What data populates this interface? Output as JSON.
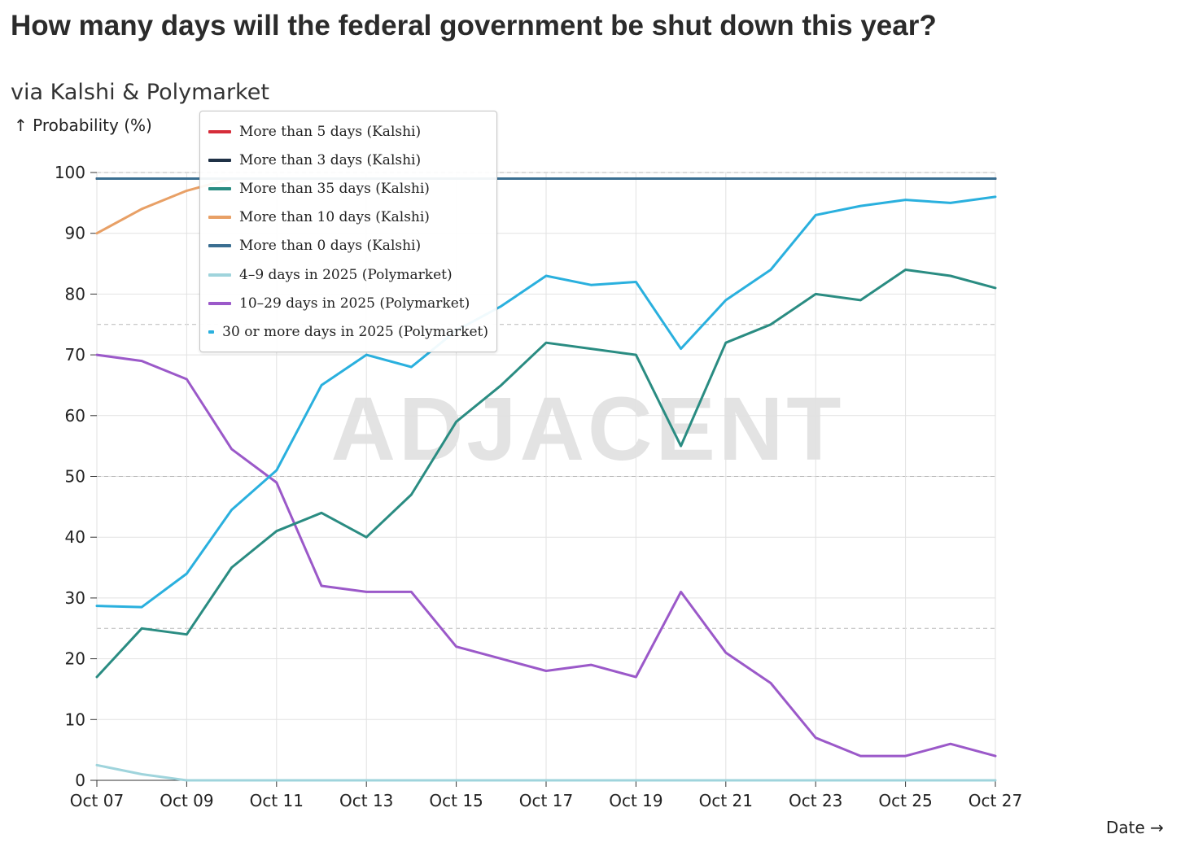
{
  "title": "How many days will the federal government be shut down this year?",
  "subtitle": "via Kalshi & Polymarket",
  "watermark": "ADJACENT",
  "chart_data": {
    "type": "line",
    "ylabel": "↑ Probability (%)",
    "xlabel": "Date →",
    "ylim": [
      0,
      100
    ],
    "yticks": [
      0,
      10,
      20,
      30,
      40,
      50,
      60,
      70,
      80,
      90,
      100
    ],
    "dashed_reference_lines": [
      25,
      50,
      75,
      100
    ],
    "grid": true,
    "legend_position": "top-left",
    "x": [
      "Oct 07",
      "Oct 08",
      "Oct 09",
      "Oct 10",
      "Oct 11",
      "Oct 12",
      "Oct 13",
      "Oct 14",
      "Oct 15",
      "Oct 16",
      "Oct 17",
      "Oct 18",
      "Oct 19",
      "Oct 20",
      "Oct 21",
      "Oct 22",
      "Oct 23",
      "Oct 24",
      "Oct 25",
      "Oct 26",
      "Oct 27"
    ],
    "xtick_labels": [
      "Oct 07",
      "Oct 09",
      "Oct 11",
      "Oct 13",
      "Oct 15",
      "Oct 17",
      "Oct 19",
      "Oct 21",
      "Oct 23",
      "Oct 25",
      "Oct 27"
    ],
    "series": [
      {
        "name": "More than 5 days (Kalshi)",
        "color": "#d62d3a",
        "values": [
          99,
          99,
          99,
          99,
          99,
          99,
          99,
          99,
          99,
          99,
          99,
          99,
          99,
          99,
          99,
          99,
          99,
          99,
          99,
          99,
          99
        ]
      },
      {
        "name": "More than 3 days (Kalshi)",
        "color": "#1f3146",
        "values": [
          99,
          99,
          99,
          99,
          99,
          99,
          99,
          99,
          99,
          99,
          99,
          99,
          99,
          99,
          99,
          99,
          99,
          99,
          99,
          99,
          99
        ]
      },
      {
        "name": "More than 35 days (Kalshi)",
        "color": "#2a8c82",
        "values": [
          17,
          25,
          24,
          35,
          41,
          44,
          40,
          47,
          59,
          65,
          72,
          71,
          70,
          55,
          72,
          75,
          80,
          79,
          84,
          83,
          81
        ]
      },
      {
        "name": "More than 10 days (Kalshi)",
        "color": "#e8a066",
        "values": [
          90,
          94,
          97,
          99,
          99,
          99,
          99,
          99,
          99,
          99,
          99,
          99,
          99,
          99,
          99,
          99,
          99,
          99,
          99,
          99,
          99
        ]
      },
      {
        "name": "More than 0 days (Kalshi)",
        "color": "#3a6e91",
        "values": [
          99,
          99,
          99,
          99,
          99,
          99,
          99,
          99,
          99,
          99,
          99,
          99,
          99,
          99,
          99,
          99,
          99,
          99,
          99,
          99,
          99
        ]
      },
      {
        "name": "4–9 days in 2025 (Polymarket)",
        "color": "#9fd4dc",
        "values": [
          2.5,
          1,
          0,
          0,
          0,
          0,
          0,
          0,
          0,
          0,
          0,
          0,
          0,
          0,
          0,
          0,
          0,
          0,
          0,
          0,
          0
        ]
      },
      {
        "name": "10–29 days in 2025 (Polymarket)",
        "color": "#9b59c9",
        "values": [
          70,
          69,
          66,
          54.5,
          49,
          32,
          31,
          31,
          22,
          20,
          18,
          19,
          17,
          31,
          21,
          16,
          7,
          4,
          4,
          6,
          4
        ]
      },
      {
        "name": "30 or more days in 2025 (Polymarket)",
        "color": "#2ab0de",
        "values": [
          28.7,
          28.5,
          34,
          44.5,
          51,
          65,
          70,
          68,
          74,
          78,
          83,
          81.5,
          82,
          71,
          79,
          84,
          93,
          94.5,
          95.5,
          95,
          96
        ]
      }
    ],
    "draw_order": [
      6,
      7,
      2,
      5,
      3,
      0,
      1,
      4
    ]
  }
}
